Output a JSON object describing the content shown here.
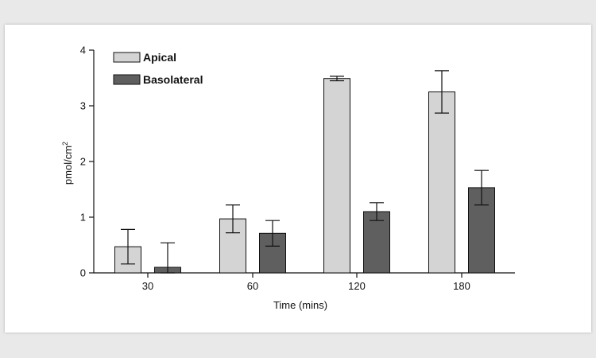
{
  "chart_data": {
    "type": "bar",
    "categories": [
      "30",
      "60",
      "120",
      "180"
    ],
    "series": [
      {
        "name": "Apical",
        "color": "#d4d4d4",
        "values": [
          0.47,
          0.97,
          3.49,
          3.25
        ],
        "errors": [
          0.31,
          0.25,
          0.04,
          0.38
        ]
      },
      {
        "name": "Basolateral",
        "color": "#5f5f5f",
        "values": [
          0.1,
          0.71,
          1.1,
          1.53
        ],
        "errors": [
          0.44,
          0.23,
          0.16,
          0.31
        ]
      }
    ],
    "xlabel": "Time (mins)",
    "ylabel": "pmol/cm",
    "ylabel_superscript": "2",
    "ylim": [
      0,
      4
    ],
    "yticks": [
      "0",
      "1",
      "2",
      "3",
      "4"
    ],
    "grid": false,
    "legend_position": "top-left"
  }
}
